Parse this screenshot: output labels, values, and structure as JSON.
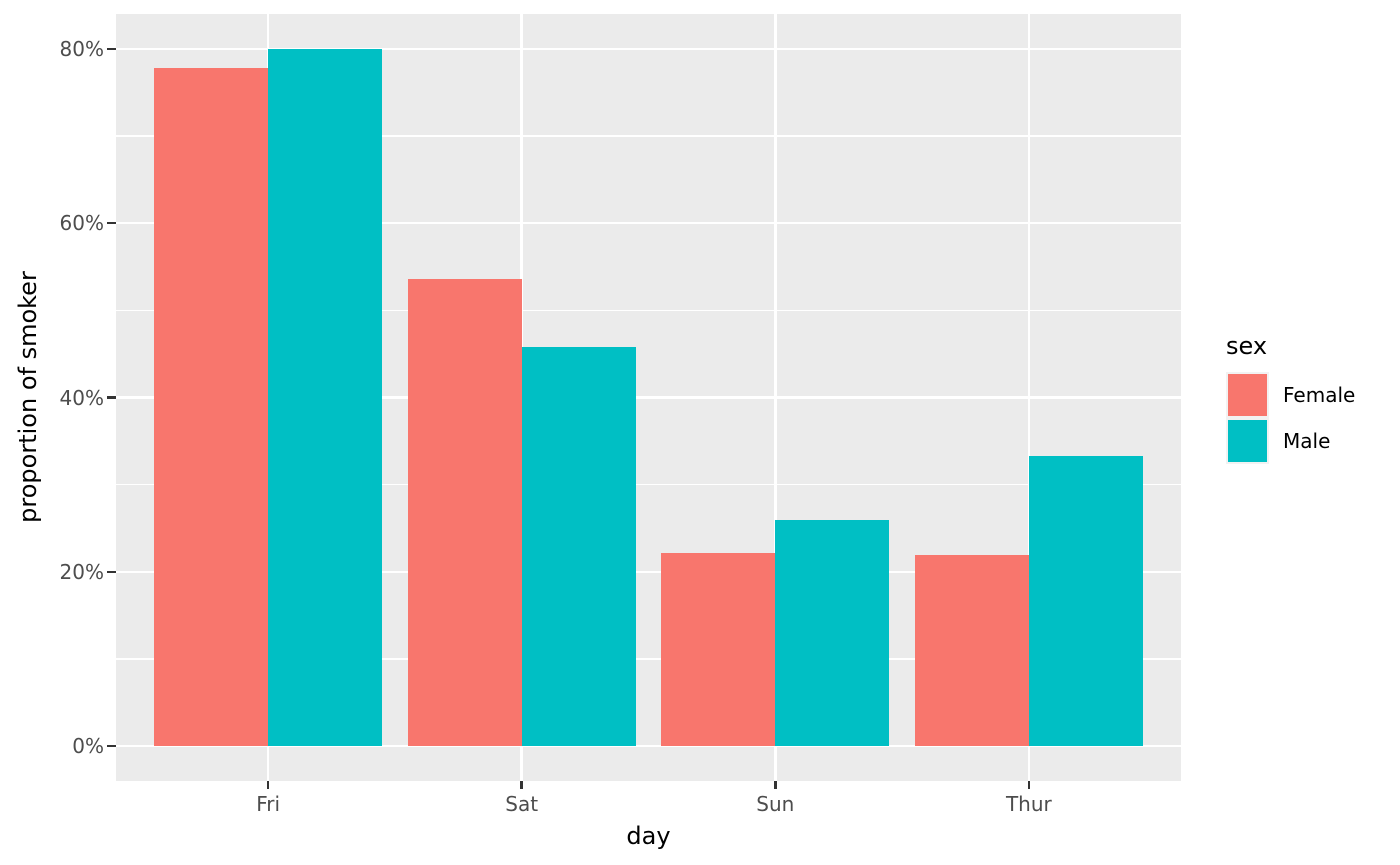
{
  "chart_data": {
    "type": "bar",
    "subtype": "grouped-dodged",
    "title": "",
    "xlabel": "day",
    "ylabel": "proportion of smoker",
    "categories": [
      "Fri",
      "Sat",
      "Sun",
      "Thur"
    ],
    "series": [
      {
        "name": "Female",
        "color": "#F8766D",
        "values": [
          77.8,
          53.6,
          22.2,
          21.9
        ]
      },
      {
        "name": "Male",
        "color": "#00BFC4",
        "values": [
          80.0,
          45.8,
          25.9,
          33.3
        ]
      }
    ],
    "value_unit": "percent",
    "ylim": [
      0,
      80
    ],
    "y_ticks": [
      "0%",
      "20%",
      "40%",
      "60%",
      "80%"
    ],
    "y_tick_values": [
      0,
      20,
      40,
      60,
      80
    ],
    "y_minor_tick_values": [
      10,
      30,
      50,
      70
    ],
    "legend_title": "sex",
    "legend_position": "right",
    "grid": "horizontal major+minor, vertical major at categories",
    "theme": {
      "panel_background": "#EBEBEB",
      "gridline_color": "#FFFFFF",
      "tick_mark_color": "#333333",
      "tick_label_color": "#4D4D4D",
      "axis_title_color": "#000000"
    }
  }
}
